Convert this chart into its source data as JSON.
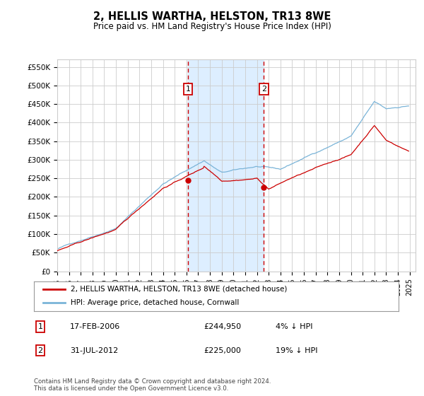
{
  "title": "2, HELLIS WARTHA, HELSTON, TR13 8WE",
  "subtitle": "Price paid vs. HM Land Registry's House Price Index (HPI)",
  "ylabel_ticks": [
    "£0",
    "£50K",
    "£100K",
    "£150K",
    "£200K",
    "£250K",
    "£300K",
    "£350K",
    "£400K",
    "£450K",
    "£500K",
    "£550K"
  ],
  "ytick_values": [
    0,
    50000,
    100000,
    150000,
    200000,
    250000,
    300000,
    350000,
    400000,
    450000,
    500000,
    550000
  ],
  "ylim": [
    0,
    570000
  ],
  "xlim_start": 1995.0,
  "xlim_end": 2025.5,
  "transaction1": {
    "date_num": 2006.12,
    "price": 244950,
    "label": "1"
  },
  "transaction2": {
    "date_num": 2012.58,
    "price": 225000,
    "label": "2"
  },
  "legend_line1": "2, HELLIS WARTHA, HELSTON, TR13 8WE (detached house)",
  "legend_line2": "HPI: Average price, detached house, Cornwall",
  "table_row1": [
    "1",
    "17-FEB-2006",
    "£244,950",
    "4% ↓ HPI"
  ],
  "table_row2": [
    "2",
    "31-JUL-2012",
    "£225,000",
    "19% ↓ HPI"
  ],
  "footer": "Contains HM Land Registry data © Crown copyright and database right 2024.\nThis data is licensed under the Open Government Licence v3.0.",
  "hpi_color": "#7ab4d8",
  "price_color": "#cc0000",
  "highlight_color": "#ddeeff",
  "grid_color": "#cccccc",
  "background_color": "#ffffff"
}
